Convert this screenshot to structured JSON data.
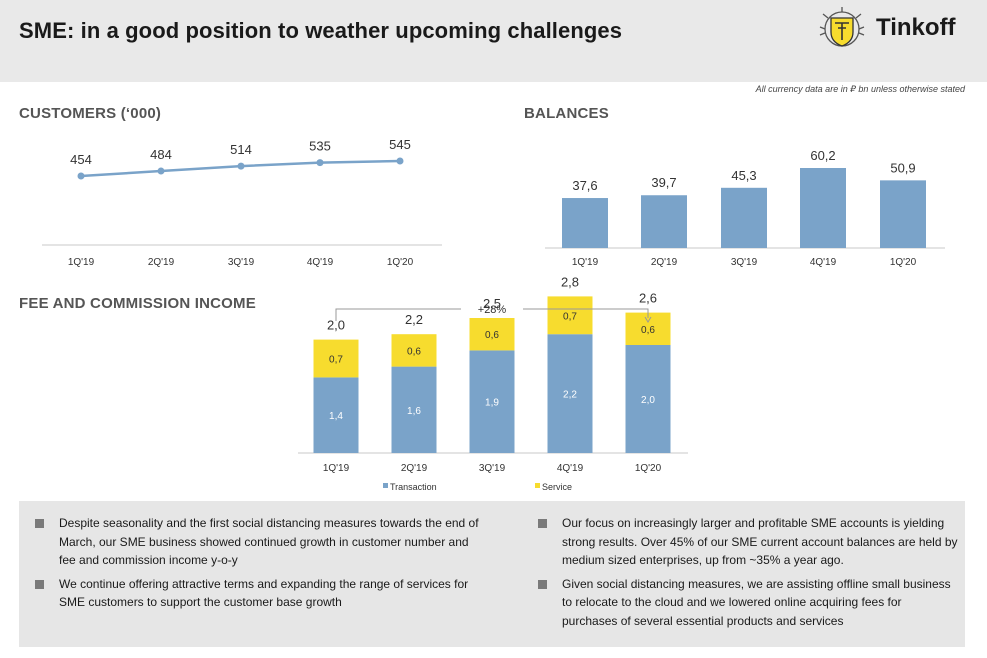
{
  "header": {
    "title": "SME: in a good position to weather upcoming challenges",
    "logo_text": "Tinkoff"
  },
  "note": "All currency data are in ₽ bn unless otherwise stated",
  "colors": {
    "line": "#7aa3c9",
    "bar": "#7aa3c9",
    "transaction": "#7aa3c9",
    "service": "#f7dc2e"
  },
  "chart_data": [
    {
      "type": "line",
      "title": "CUSTOMERS (‘000)",
      "categories": [
        "1Q'19",
        "2Q'19",
        "3Q'19",
        "4Q'19",
        "1Q'20"
      ],
      "values": [
        454,
        484,
        514,
        535,
        545
      ],
      "labels": [
        "454",
        "484",
        "514",
        "535",
        "545"
      ]
    },
    {
      "type": "bar",
      "title": "BALANCES",
      "categories": [
        "1Q'19",
        "2Q'19",
        "3Q'19",
        "4Q'19",
        "1Q'20"
      ],
      "values": [
        37.6,
        39.7,
        45.3,
        60.2,
        50.9
      ],
      "labels": [
        "37,6",
        "39,7",
        "45,3",
        "60,2",
        "50,9"
      ]
    },
    {
      "type": "bar",
      "stacked": true,
      "title": "FEE AND COMMISSION INCOME",
      "categories": [
        "1Q'19",
        "2Q'19",
        "3Q'19",
        "4Q'19",
        "1Q'20"
      ],
      "series": [
        {
          "name": "Transaction",
          "values": [
            1.4,
            1.6,
            1.9,
            2.2,
            2.0
          ],
          "labels": [
            "1,4",
            "1,6",
            "1,9",
            "2,2",
            "2,0"
          ]
        },
        {
          "name": "Service",
          "values": [
            0.7,
            0.6,
            0.6,
            0.7,
            0.6
          ],
          "labels": [
            "0,7",
            "0,6",
            "0,6",
            "0,7",
            "0,6"
          ]
        }
      ],
      "totals": [
        2.0,
        2.2,
        2.5,
        2.8,
        2.6
      ],
      "total_labels": [
        "2,0",
        "2,2",
        "2,5",
        "2,8",
        "2,6"
      ],
      "growth_annotation": "+28%"
    }
  ],
  "bullets_left": [
    "Despite seasonality and the first social distancing measures towards the end of March, our SME business showed continued growth in customer number and fee and commission income y-o-y",
    "We continue offering attractive terms and expanding the range of services for SME customers to support the customer base growth"
  ],
  "bullets_right": [
    "Our focus on increasingly larger and profitable SME accounts is yielding strong results. Over 45% of our SME current account balances are held by medium sized enterprises, up from ~35% a year ago.",
    "Given social distancing measures, we are assisting offline small business to relocate to the cloud and we lowered online acquiring fees for purchases of several essential products and services"
  ]
}
